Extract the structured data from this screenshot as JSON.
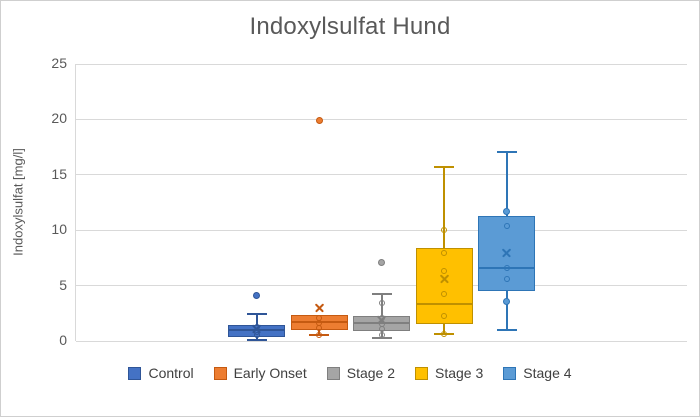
{
  "window": {
    "background": "#ffffff",
    "border_color": "#cfcfcf",
    "gridline_color": "#d9d9d9",
    "axis_line_color": "#d9d9d9",
    "title_color": "#595959",
    "tick_color": "#595959",
    "legend_text_color": "#404040"
  },
  "chart_data": {
    "type": "boxplot",
    "title": "Indoxylsulfat Hund",
    "ylabel": "Indoxylsulfat [mg/l]",
    "xlabel": "",
    "ylim": [
      0,
      25
    ],
    "yticks": [
      0,
      5,
      10,
      15,
      20,
      25
    ],
    "grid": "horizontal",
    "legend_position": "bottom",
    "series": [
      {
        "name": "Control",
        "fill": "#4472C4",
        "line": "#2F5597",
        "whisker_low": 0.1,
        "q1": 0.4,
        "median": 0.95,
        "q3": 1.4,
        "whisker_high": 2.4,
        "mean": 1.1,
        "points_hollow": [
          1.3,
          0.85,
          0.55
        ],
        "points_filled": [
          4.1
        ]
      },
      {
        "name": "Early Onset",
        "fill": "#ED7D31",
        "line": "#C55A11",
        "whisker_low": 0.5,
        "q1": 1.0,
        "median": 1.7,
        "q3": 2.35,
        "whisker_high": 2.35,
        "mean": 3.05,
        "points_hollow": [
          2.1,
          1.6,
          1.2,
          0.55
        ],
        "points_filled": [
          19.9
        ]
      },
      {
        "name": "Stage 2",
        "fill": "#A5A5A5",
        "line": "#7F7F7F",
        "whisker_low": 0.3,
        "q1": 0.9,
        "median": 1.6,
        "q3": 2.25,
        "whisker_high": 4.25,
        "mean": 1.9,
        "points_hollow": [
          3.4,
          2.1,
          1.55,
          1.05,
          0.5
        ],
        "points_filled": [
          7.1
        ]
      },
      {
        "name": "Stage 3",
        "fill": "#FFC000",
        "line": "#BF9000",
        "whisker_low": 0.6,
        "q1": 1.5,
        "median": 3.3,
        "q3": 8.4,
        "whisker_high": 15.7,
        "mean": 5.6,
        "points_hollow": [
          10.0,
          7.9,
          6.3,
          4.2,
          2.25,
          0.65
        ],
        "points_filled": []
      },
      {
        "name": "Stage 4",
        "fill": "#5B9BD5",
        "line": "#2E75B6",
        "whisker_low": 1.0,
        "q1": 4.5,
        "median": 6.6,
        "q3": 11.25,
        "whisker_high": 17.1,
        "mean": 8.0,
        "points_hollow": [
          10.4,
          6.6,
          5.6
        ],
        "points_filled": [
          11.7,
          3.6
        ]
      }
    ]
  }
}
